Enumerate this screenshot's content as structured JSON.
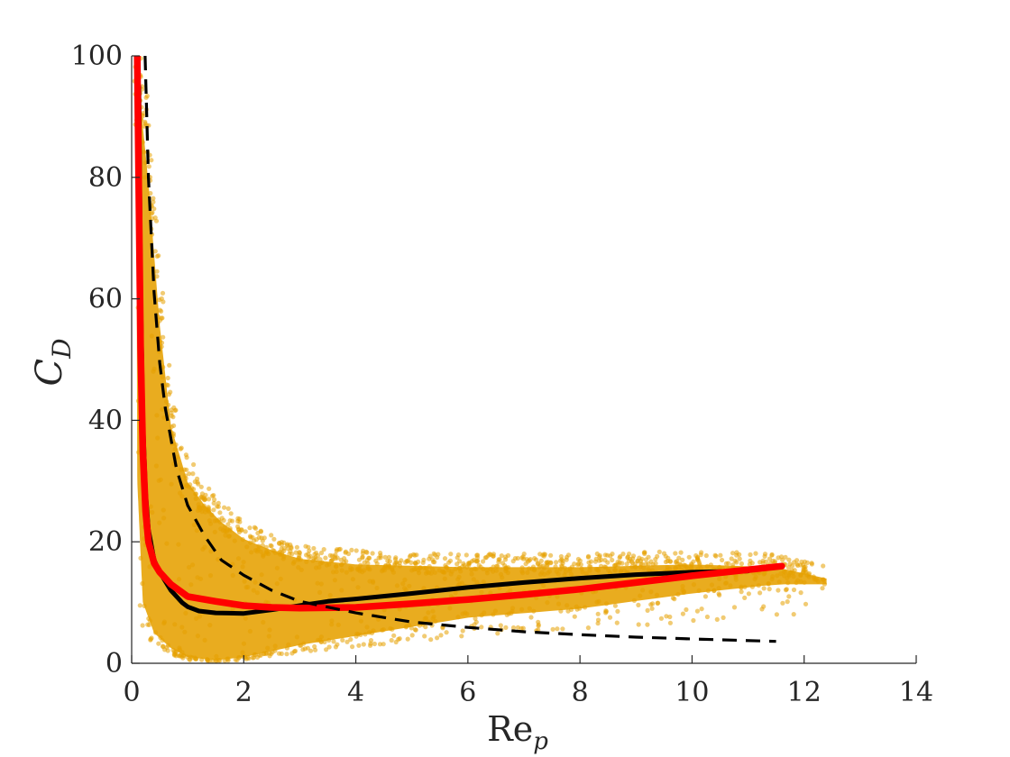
{
  "chart_data": {
    "type": "scatter",
    "title": "",
    "xlabel": {
      "main": "Re",
      "sub": "p"
    },
    "ylabel": {
      "main": "C",
      "sub": "D"
    },
    "xlim": [
      0,
      14
    ],
    "ylim": [
      0,
      100
    ],
    "xticks": [
      "0",
      "2",
      "4",
      "6",
      "8",
      "10",
      "12",
      "14"
    ],
    "yticks": [
      "0",
      "20",
      "40",
      "60",
      "80",
      "100"
    ],
    "grid": false,
    "legend": "none",
    "scatter_cloud": {
      "color": "#E6A100",
      "envelope_upper": [
        [
          0.08,
          100
        ],
        [
          0.15,
          100
        ],
        [
          0.3,
          85
        ],
        [
          0.5,
          60
        ],
        [
          0.7,
          42
        ],
        [
          1.0,
          32
        ],
        [
          1.3,
          28
        ],
        [
          1.6,
          25
        ],
        [
          2.0,
          22
        ],
        [
          2.5,
          20
        ],
        [
          3.0,
          18.5
        ],
        [
          4.0,
          17.5
        ],
        [
          6.0,
          17
        ],
        [
          8.0,
          17
        ],
        [
          10.0,
          17.5
        ],
        [
          11.5,
          17
        ],
        [
          12.4,
          15
        ]
      ],
      "envelope_lower": [
        [
          0.08,
          100
        ],
        [
          0.1,
          30
        ],
        [
          0.2,
          10
        ],
        [
          0.4,
          5
        ],
        [
          0.7,
          2.5
        ],
        [
          1.0,
          1
        ],
        [
          1.5,
          0.5
        ],
        [
          2.0,
          1
        ],
        [
          2.5,
          2
        ],
        [
          3.0,
          3
        ],
        [
          4.0,
          4.5
        ],
        [
          5.0,
          6
        ],
        [
          6.0,
          7.5
        ],
        [
          8.0,
          9
        ],
        [
          10.0,
          11.5
        ],
        [
          11.5,
          13
        ],
        [
          12.4,
          13
        ]
      ]
    },
    "series": [
      {
        "color": "#000000",
        "style": "solid",
        "x": [
          0.13,
          0.16,
          0.2,
          0.25,
          0.3,
          0.4,
          0.5,
          0.7,
          0.9,
          1.0,
          1.2,
          1.5,
          2.0,
          2.5,
          3.0,
          3.5,
          4.0,
          5.0,
          6.0,
          7.0,
          8.0,
          9.0,
          10.0,
          11.0
        ],
        "y": [
          95,
          62,
          40,
          28,
          22,
          17,
          15,
          12,
          10,
          9.3,
          8.6,
          8.3,
          8.2,
          8.8,
          9.5,
          10.2,
          10.6,
          11.5,
          12.5,
          13.3,
          14.0,
          14.6,
          15.0,
          15.2
        ]
      },
      {
        "color": "#FF0000",
        "style": "solid-thick",
        "x": [
          0.1,
          0.13,
          0.16,
          0.2,
          0.25,
          0.3,
          0.4,
          0.5,
          0.7,
          1.0,
          1.5,
          2.0,
          2.5,
          3.0,
          4.0,
          5.0,
          6.0,
          7.0,
          8.0,
          9.0,
          10.0,
          11.0,
          11.6
        ],
        "y": [
          100,
          75,
          52,
          35,
          25,
          20,
          16.5,
          15,
          13,
          11,
          10.2,
          9.5,
          9.2,
          9.1,
          9.2,
          9.8,
          10.5,
          11.3,
          12.2,
          13.3,
          14.4,
          15.4,
          16.0
        ]
      },
      {
        "color": "#000000",
        "style": "dashed",
        "x": [
          0.24,
          0.3,
          0.4,
          0.5,
          0.6,
          0.8,
          1.0,
          1.3,
          1.6,
          2.0,
          2.5,
          3.0,
          4.0,
          5.0,
          6.0,
          7.0,
          8.0,
          9.0,
          10.0,
          11.5
        ],
        "y": [
          100,
          80,
          61,
          49.5,
          42,
          32,
          26,
          21,
          17,
          14.5,
          12,
          10.2,
          8.3,
          6.8,
          5.9,
          5.2,
          4.7,
          4.3,
          4.0,
          3.6
        ]
      }
    ]
  }
}
